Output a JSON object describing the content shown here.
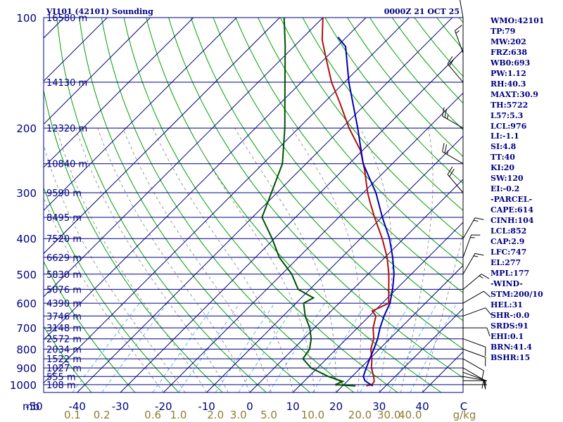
{
  "header": {
    "station": "VI101 (42101) Sounding",
    "time": "0000Z 21 OCT 25"
  },
  "axis": {
    "unit_label": "mb",
    "mixing_unit": "g/kg"
  },
  "stats": [
    "WMO:42101",
    "TP:79",
    "MW:202",
    "FRZ:638",
    "WB0:693",
    "PW:1.12",
    "RH:40.3",
    "MAXT:30.9",
    "TH:5722",
    "L57:5.3",
    "LCL:976",
    "LI:-1.1",
    "SI:4.8",
    "TT:40",
    "KI:20",
    "SW:120",
    "EI:-0.2",
    "-PARCEL-",
    "CAPE:614",
    "CINH:104",
    "LCL:852",
    "CAP:2.9",
    "LFC:747",
    "EL:277",
    "MPL:177",
    "-WIND-",
    "STM:200/10",
    "HEL:31",
    "SHR-:0.0",
    "SRDS:91",
    "EHI:0.1",
    "BRN:41.4",
    "BSHR:15"
  ],
  "colors": {
    "isobar": "#000080",
    "isotherm": "#000080",
    "dry_adiabat": "#00a000",
    "moist_adiabat": "#808080",
    "mixing_ratio": "#40a0ff",
    "temperature": "#b01010",
    "dewpoint": "#005000",
    "parcel": "#0000b0",
    "background": "#ffffff"
  },
  "chart_data": {
    "type": "skew-t",
    "pressure_ticks": [
      100,
      200,
      300,
      400,
      500,
      600,
      700,
      800,
      900,
      1000
    ],
    "temperature_ticks": [
      -50,
      -40,
      -30,
      -20,
      -10,
      0,
      10,
      20,
      30,
      40
    ],
    "temperature_ticks_bottom_right": "C",
    "mixing_ratio_labels": [
      "0.1",
      "0.2",
      "0.6",
      "1.0",
      "2.0",
      "3.0",
      "5.0",
      "10.0",
      "20.0",
      "30.0",
      "40.0"
    ],
    "mixing_ratio_values": [
      0.1,
      0.2,
      0.6,
      1.0,
      2.0,
      3.0,
      5.0,
      10.0,
      20.0,
      30.0,
      40.0
    ],
    "heights": [
      {
        "p": 100,
        "label": "16580 m"
      },
      {
        "p": 150,
        "label": "14130 m"
      },
      {
        "p": 200,
        "label": "12320 m"
      },
      {
        "p": 250,
        "label": "10840 m"
      },
      {
        "p": 300,
        "label": "9590 m"
      },
      {
        "p": 350,
        "label": "8495 m"
      },
      {
        "p": 400,
        "label": "7520 m"
      },
      {
        "p": 450,
        "label": "6629 m"
      },
      {
        "p": 500,
        "label": "5830 m"
      },
      {
        "p": 550,
        "label": "5076 m"
      },
      {
        "p": 600,
        "label": "4390 m"
      },
      {
        "p": 650,
        "label": "3746 m"
      },
      {
        "p": 700,
        "label": "3148 m"
      },
      {
        "p": 750,
        "label": "2572 m"
      },
      {
        "p": 800,
        "label": "2034 m"
      },
      {
        "p": 850,
        "label": "1522 m"
      },
      {
        "p": 900,
        "label": "1027 m"
      },
      {
        "p": 950,
        "label": "555 m"
      },
      {
        "p": 1000,
        "label": "108 m"
      }
    ],
    "temperature_profile": [
      [
        1008,
        25.5
      ],
      [
        1000,
        26.5
      ],
      [
        980,
        26.3
      ],
      [
        950,
        25.0
      ],
      [
        900,
        22.5
      ],
      [
        850,
        20.5
      ],
      [
        800,
        18.0
      ],
      [
        750,
        16.3
      ],
      [
        700,
        13.6
      ],
      [
        650,
        11.5
      ],
      [
        630,
        9.5
      ],
      [
        600,
        11.5
      ],
      [
        550,
        8.3
      ],
      [
        500,
        4.8
      ],
      [
        450,
        0.5
      ],
      [
        400,
        -5.0
      ],
      [
        350,
        -11.7
      ],
      [
        320,
        -16.0
      ],
      [
        300,
        -19.0
      ],
      [
        260,
        -25.0
      ],
      [
        230,
        -30.5
      ],
      [
        200,
        -38.3
      ],
      [
        170,
        -46.5
      ],
      [
        150,
        -53.0
      ],
      [
        130,
        -59.5
      ],
      [
        115,
        -65.0
      ],
      [
        100,
        -70.0
      ]
    ],
    "dewpoint_profile": [
      [
        1008,
        23.0
      ],
      [
        1000,
        18.0
      ],
      [
        980,
        19.0
      ],
      [
        950,
        14.5
      ],
      [
        900,
        8.5
      ],
      [
        850,
        4.5
      ],
      [
        800,
        3.8
      ],
      [
        750,
        1.8
      ],
      [
        700,
        -1.1
      ],
      [
        650,
        -4.9
      ],
      [
        600,
        -8.2
      ],
      [
        580,
        -7.2
      ],
      [
        550,
        -12.7
      ],
      [
        500,
        -17.7
      ],
      [
        450,
        -24.5
      ],
      [
        400,
        -30.5
      ],
      [
        350,
        -37.8
      ],
      [
        300,
        -41.3
      ],
      [
        250,
        -45.5
      ],
      [
        200,
        -53.2
      ],
      [
        150,
        -63.8
      ],
      [
        120,
        -72.0
      ],
      [
        100,
        -79.0
      ]
    ],
    "parcel_profile": [
      [
        1008,
        27.0
      ],
      [
        990,
        25.3
      ],
      [
        976,
        24.0
      ],
      [
        950,
        22.6
      ],
      [
        900,
        21.3
      ],
      [
        850,
        20.0
      ],
      [
        800,
        18.7
      ],
      [
        750,
        17.2
      ],
      [
        700,
        15.2
      ],
      [
        650,
        13.4
      ],
      [
        600,
        11.8
      ],
      [
        550,
        9.2
      ],
      [
        500,
        6.0
      ],
      [
        450,
        1.8
      ],
      [
        400,
        -3.3
      ],
      [
        350,
        -9.9
      ],
      [
        300,
        -17.1
      ],
      [
        250,
        -26.8
      ],
      [
        200,
        -36.3
      ],
      [
        150,
        -49.0
      ],
      [
        120,
        -58.0
      ],
      [
        113,
        -62.0
      ]
    ],
    "wind_barbs": [
      {
        "p": 1000,
        "dir": 90,
        "spd": 5
      },
      {
        "p": 975,
        "dir": 90,
        "spd": 5
      },
      {
        "p": 950,
        "dir": 100,
        "spd": 5
      },
      {
        "p": 925,
        "dir": 110,
        "spd": 10
      },
      {
        "p": 900,
        "dir": 120,
        "spd": 10
      },
      {
        "p": 850,
        "dir": 120,
        "spd": 10
      },
      {
        "p": 800,
        "dir": 110,
        "spd": 10
      },
      {
        "p": 750,
        "dir": 110,
        "spd": 10
      },
      {
        "p": 700,
        "dir": 90,
        "spd": 10
      },
      {
        "p": 650,
        "dir": 70,
        "spd": 10
      },
      {
        "p": 600,
        "dir": 60,
        "spd": 10
      },
      {
        "p": 550,
        "dir": 50,
        "spd": 15
      },
      {
        "p": 500,
        "dir": 30,
        "spd": 15
      },
      {
        "p": 450,
        "dir": 20,
        "spd": 15
      },
      {
        "p": 400,
        "dir": 30,
        "spd": 15
      },
      {
        "p": 300,
        "dir": 320,
        "spd": 20
      },
      {
        "p": 250,
        "dir": 300,
        "spd": 25
      },
      {
        "p": 200,
        "dir": 300,
        "spd": 25
      },
      {
        "p": 150,
        "dir": 320,
        "spd": 20
      },
      {
        "p": 125,
        "dir": 340,
        "spd": 15
      },
      {
        "p": 100,
        "dir": 350,
        "spd": 15
      }
    ]
  }
}
